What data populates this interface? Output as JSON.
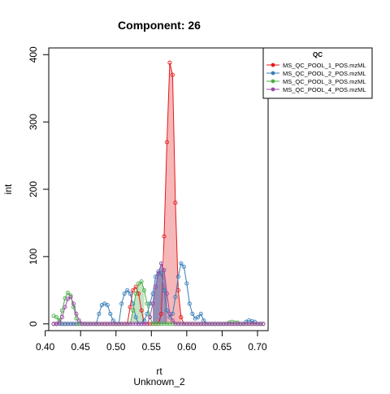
{
  "chart_data": {
    "type": "line",
    "title": "Component: 26",
    "xlabel": "rt",
    "subtitle": "Unknown_2",
    "ylabel": "int",
    "xlim": [
      0.405,
      0.715
    ],
    "ylim": [
      -10,
      410
    ],
    "x_ticks": [
      "0.40",
      "0.45",
      "0.50",
      "0.55",
      "0.60",
      "0.65",
      "0.70"
    ],
    "x_tick_values": [
      0.4,
      0.45,
      0.5,
      0.55,
      0.6,
      0.65,
      0.7
    ],
    "y_ticks": [
      "0",
      "100",
      "200",
      "300",
      "400"
    ],
    "y_tick_values": [
      0,
      100,
      200,
      300,
      400
    ],
    "legend": {
      "title": "QC",
      "placement": "top-right"
    },
    "series": [
      {
        "name": "MS_QC_POOL_1_POS.mzML",
        "color": "#e41a1c",
        "fill": "#f4a5a6",
        "filled_range": [
          0.566,
          0.592
        ],
        "x": [
          0.412,
          0.416,
          0.42,
          0.424,
          0.428,
          0.432,
          0.436,
          0.44,
          0.444,
          0.448,
          0.452,
          0.456,
          0.46,
          0.464,
          0.468,
          0.472,
          0.476,
          0.48,
          0.484,
          0.488,
          0.492,
          0.496,
          0.5,
          0.504,
          0.508,
          0.512,
          0.516,
          0.52,
          0.524,
          0.528,
          0.532,
          0.536,
          0.54,
          0.544,
          0.548,
          0.552,
          0.556,
          0.56,
          0.564,
          0.568,
          0.572,
          0.576,
          0.58,
          0.584,
          0.588,
          0.592,
          0.596,
          0.6,
          0.604,
          0.608,
          0.612,
          0.616,
          0.62,
          0.624,
          0.628,
          0.632,
          0.636,
          0.64,
          0.644,
          0.648,
          0.652,
          0.656,
          0.66,
          0.664,
          0.668,
          0.672,
          0.676,
          0.68,
          0.684,
          0.688,
          0.692,
          0.696,
          0.7,
          0.704,
          0.708
        ],
        "values": [
          0,
          0,
          0,
          0,
          0,
          0,
          0,
          0,
          0,
          0,
          0,
          0,
          0,
          0,
          0,
          0,
          0,
          0,
          0,
          0,
          0,
          0,
          0,
          0,
          0,
          0,
          0,
          25,
          50,
          55,
          45,
          20,
          0,
          0,
          0,
          0,
          0,
          0,
          15,
          130,
          270,
          388,
          370,
          180,
          50,
          10,
          0,
          0,
          0,
          0,
          0,
          0,
          0,
          0,
          0,
          0,
          0,
          0,
          0,
          0,
          0,
          0,
          0,
          0,
          0,
          0,
          0,
          0,
          0,
          0,
          0,
          0,
          0,
          0,
          0
        ]
      },
      {
        "name": "MS_QC_POOL_2_POS.mzML",
        "color": "#377eb8",
        "fill": "#a9c4e0",
        "filled_range": [
          0.549,
          0.567
        ],
        "x": [
          0.412,
          0.416,
          0.42,
          0.424,
          0.428,
          0.432,
          0.436,
          0.44,
          0.444,
          0.448,
          0.452,
          0.456,
          0.46,
          0.464,
          0.468,
          0.472,
          0.476,
          0.48,
          0.484,
          0.488,
          0.492,
          0.496,
          0.5,
          0.504,
          0.508,
          0.512,
          0.516,
          0.52,
          0.524,
          0.528,
          0.532,
          0.536,
          0.54,
          0.544,
          0.548,
          0.552,
          0.556,
          0.56,
          0.564,
          0.568,
          0.572,
          0.576,
          0.58,
          0.584,
          0.588,
          0.592,
          0.596,
          0.6,
          0.604,
          0.608,
          0.612,
          0.616,
          0.62,
          0.624,
          0.628,
          0.632,
          0.636,
          0.64,
          0.644,
          0.648,
          0.652,
          0.656,
          0.66,
          0.664,
          0.668,
          0.672,
          0.676,
          0.68,
          0.684,
          0.688,
          0.692,
          0.696,
          0.7,
          0.704,
          0.708
        ],
        "values": [
          0,
          0,
          0,
          0,
          0,
          0,
          0,
          0,
          0,
          0,
          0,
          0,
          0,
          0,
          0,
          0,
          15,
          28,
          30,
          28,
          15,
          5,
          0,
          0,
          30,
          45,
          50,
          45,
          30,
          10,
          0,
          0,
          5,
          15,
          30,
          45,
          70,
          78,
          75,
          50,
          20,
          10,
          15,
          40,
          70,
          90,
          85,
          60,
          30,
          15,
          8,
          10,
          15,
          5,
          0,
          0,
          0,
          0,
          0,
          0,
          0,
          0,
          0,
          0,
          0,
          0,
          0,
          0,
          3,
          5,
          4,
          3,
          0,
          0,
          0
        ]
      },
      {
        "name": "MS_QC_POOL_3_POS.mzML",
        "color": "#4daf4a",
        "fill": "#b8dcb6",
        "filled_range": [
          0.518,
          0.542
        ],
        "x": [
          0.412,
          0.416,
          0.42,
          0.424,
          0.428,
          0.432,
          0.436,
          0.44,
          0.444,
          0.448,
          0.452,
          0.456,
          0.46,
          0.464,
          0.468,
          0.472,
          0.476,
          0.48,
          0.484,
          0.488,
          0.492,
          0.496,
          0.5,
          0.504,
          0.508,
          0.512,
          0.516,
          0.52,
          0.524,
          0.528,
          0.532,
          0.536,
          0.54,
          0.544,
          0.548,
          0.552,
          0.556,
          0.56,
          0.564,
          0.568,
          0.572,
          0.576,
          0.58,
          0.584,
          0.588,
          0.592,
          0.596,
          0.6,
          0.604,
          0.608,
          0.612,
          0.616,
          0.62,
          0.624,
          0.628,
          0.632,
          0.636,
          0.64,
          0.644,
          0.648,
          0.652,
          0.656,
          0.66,
          0.664,
          0.668,
          0.672,
          0.676,
          0.68,
          0.684,
          0.688,
          0.692,
          0.696,
          0.7,
          0.704,
          0.708
        ],
        "values": [
          12,
          10,
          5,
          20,
          38,
          46,
          42,
          25,
          8,
          0,
          0,
          0,
          0,
          0,
          0,
          0,
          0,
          0,
          0,
          0,
          0,
          0,
          0,
          0,
          0,
          0,
          0,
          0,
          20,
          45,
          60,
          63,
          50,
          30,
          10,
          0,
          0,
          0,
          0,
          0,
          0,
          0,
          0,
          0,
          0,
          0,
          0,
          0,
          0,
          0,
          0,
          0,
          0,
          0,
          0,
          0,
          0,
          0,
          0,
          0,
          0,
          0,
          2,
          3,
          2,
          2,
          0,
          0,
          0,
          0,
          0,
          0,
          0,
          0,
          0
        ]
      },
      {
        "name": "MS_QC_POOL_4_POS.mzML",
        "color": "#984ea3",
        "fill": "#8f7aaa",
        "filled_range": [
          0.552,
          0.573
        ],
        "x": [
          0.412,
          0.416,
          0.42,
          0.424,
          0.428,
          0.432,
          0.436,
          0.44,
          0.444,
          0.448,
          0.452,
          0.456,
          0.46,
          0.464,
          0.468,
          0.472,
          0.476,
          0.48,
          0.484,
          0.488,
          0.492,
          0.496,
          0.5,
          0.504,
          0.508,
          0.512,
          0.516,
          0.52,
          0.524,
          0.528,
          0.532,
          0.536,
          0.54,
          0.544,
          0.548,
          0.552,
          0.556,
          0.56,
          0.564,
          0.568,
          0.572,
          0.576,
          0.58,
          0.584,
          0.588,
          0.592,
          0.596,
          0.6,
          0.604,
          0.608,
          0.612,
          0.616,
          0.62,
          0.624,
          0.628,
          0.632,
          0.636,
          0.64,
          0.644,
          0.648,
          0.652,
          0.656,
          0.66,
          0.664,
          0.668,
          0.672,
          0.676,
          0.68,
          0.684,
          0.688,
          0.692,
          0.696,
          0.7,
          0.704,
          0.708
        ],
        "values": [
          0,
          0,
          2,
          10,
          25,
          37,
          40,
          30,
          15,
          5,
          0,
          0,
          0,
          0,
          0,
          0,
          0,
          0,
          0,
          0,
          0,
          0,
          0,
          0,
          0,
          0,
          0,
          0,
          0,
          0,
          0,
          0,
          0,
          0,
          10,
          30,
          55,
          75,
          90,
          80,
          45,
          15,
          5,
          0,
          0,
          0,
          0,
          0,
          0,
          0,
          0,
          0,
          0,
          0,
          0,
          0,
          0,
          0,
          0,
          0,
          0,
          0,
          0,
          0,
          0,
          0,
          0,
          0,
          0,
          0,
          0,
          0,
          0,
          0,
          0
        ]
      }
    ]
  }
}
